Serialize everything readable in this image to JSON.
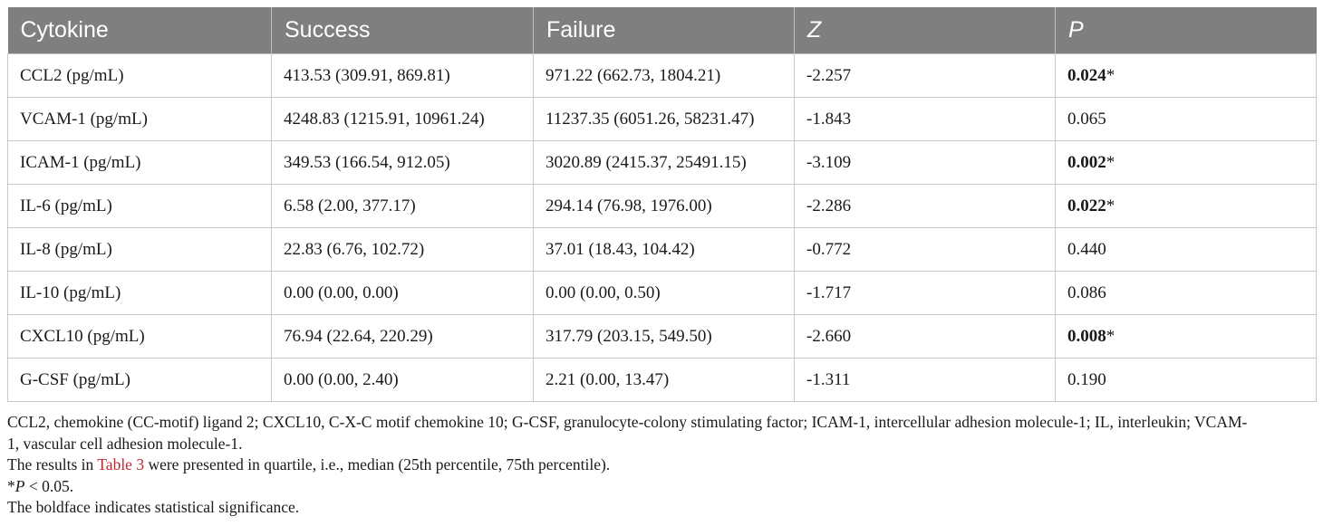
{
  "table": {
    "headers": [
      "Cytokine",
      "Success",
      "Failure",
      "Z",
      "P"
    ],
    "rows": [
      {
        "cytokine": "CCL2 (pg/mL)",
        "success": "413.53 (309.91, 869.81)",
        "failure": "971.22 (662.73, 1804.21)",
        "z": "-2.257",
        "p": "0.024",
        "sig": true
      },
      {
        "cytokine": "VCAM-1 (pg/mL)",
        "success": "4248.83 (1215.91, 10961.24)",
        "failure": "11237.35 (6051.26, 58231.47)",
        "z": "-1.843",
        "p": "0.065",
        "sig": false
      },
      {
        "cytokine": "ICAM-1 (pg/mL)",
        "success": "349.53 (166.54, 912.05)",
        "failure": "3020.89 (2415.37, 25491.15)",
        "z": "-3.109",
        "p": "0.002",
        "sig": true
      },
      {
        "cytokine": "IL-6 (pg/mL)",
        "success": "6.58 (2.00, 377.17)",
        "failure": "294.14 (76.98, 1976.00)",
        "z": "-2.286",
        "p": "0.022",
        "sig": true
      },
      {
        "cytokine": "IL-8 (pg/mL)",
        "success": "22.83 (6.76, 102.72)",
        "failure": "37.01 (18.43, 104.42)",
        "z": "-0.772",
        "p": "0.440",
        "sig": false
      },
      {
        "cytokine": "IL-10 (pg/mL)",
        "success": "0.00 (0.00, 0.00)",
        "failure": "0.00 (0.00, 0.50)",
        "z": "-1.717",
        "p": "0.086",
        "sig": false
      },
      {
        "cytokine": "CXCL10 (pg/mL)",
        "success": "76.94 (22.64, 220.29)",
        "failure": "317.79 (203.15, 549.50)",
        "z": "-2.660",
        "p": "0.008",
        "sig": true
      },
      {
        "cytokine": "G-CSF (pg/mL)",
        "success": "0.00 (0.00, 2.40)",
        "failure": "2.21 (0.00, 13.47)",
        "z": "-1.311",
        "p": "0.190",
        "sig": false
      }
    ],
    "sig_marker": "*"
  },
  "footnotes": {
    "abbreviations_line1": "CCL2, chemokine (CC-motif) ligand 2; CXCL10, C-X-C motif chemokine 10; G-CSF, granulocyte-colony stimulating factor; ICAM-1, intercellular adhesion molecule-1; IL, interleukin; VCAM-",
    "abbreviations_line2": "1, vascular cell adhesion molecule-1.",
    "results_prefix": "The results in ",
    "results_link": "Table 3",
    "results_suffix": " were presented in quartile, i.e., median (25th percentile, 75th percentile).",
    "pvalue_star": "*",
    "pvalue_p": "P",
    "pvalue_rest": " < 0.05.",
    "boldface_note": "The boldface indicates statistical significance."
  },
  "colors": {
    "header_bg": "#7f7f7f",
    "link": "#c0282d"
  }
}
